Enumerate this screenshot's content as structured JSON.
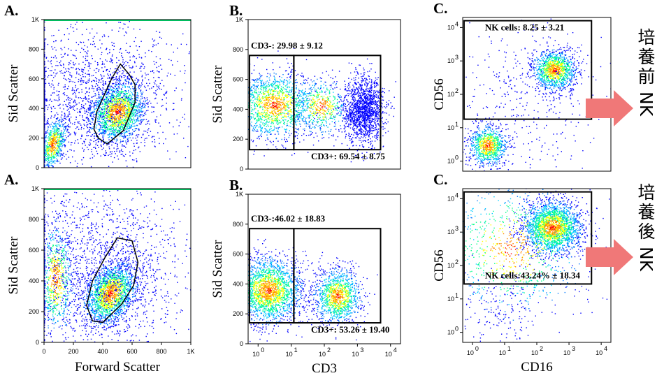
{
  "chart_data": [
    {
      "id": "A-top",
      "type": "scatter",
      "panel_label": "A.",
      "xlabel": "",
      "ylabel": "Sid Scatter",
      "x_ticks": [],
      "y_ticks": [
        "0",
        "200",
        "400",
        "600",
        "800",
        "1K"
      ],
      "xlim": [
        0,
        1000
      ],
      "ylim": [
        0,
        1000
      ],
      "clusters": [
        {
          "x": 500,
          "y": 380,
          "sx": 90,
          "sy": 110,
          "n": 1800,
          "rot": -0.5
        },
        {
          "x": 60,
          "y": 160,
          "sx": 40,
          "sy": 90,
          "n": 700,
          "rot": -0.3
        },
        {
          "x": 330,
          "y": 500,
          "sx": 300,
          "sy": 250,
          "n": 1500,
          "rot": 0
        }
      ],
      "gate": {
        "type": "polygon",
        "points": [
          [
            370,
            200
          ],
          [
            430,
            160
          ],
          [
            540,
            250
          ],
          [
            620,
            440
          ],
          [
            620,
            560
          ],
          [
            580,
            630
          ],
          [
            520,
            700
          ],
          [
            460,
            600
          ],
          [
            360,
            380
          ],
          [
            340,
            260
          ]
        ]
      }
    },
    {
      "id": "B-top",
      "type": "scatter",
      "panel_label": "B.",
      "xlabel": "",
      "ylabel": "Sid Scatter",
      "x_ticks": [],
      "y_ticks": [
        "0",
        "200",
        "400",
        "600",
        "800",
        "1K"
      ],
      "xscale": "log",
      "xlim": [
        0.5,
        20000
      ],
      "ylim": [
        0,
        1000
      ],
      "clusters": [
        {
          "x": 3,
          "y": 430,
          "sx": 0.6,
          "sy": 110,
          "n": 1500,
          "rot": 0
        },
        {
          "x": 80,
          "y": 420,
          "sx": 0.4,
          "sy": 90,
          "n": 500,
          "rot": 0
        },
        {
          "x": 1500,
          "y": 400,
          "sx": 0.3,
          "sy": 110,
          "n": 1500,
          "rot": 0
        }
      ],
      "gates": [
        {
          "label": "CD3-: 29.98 ± 9.12",
          "x": [
            0.55,
            12
          ],
          "y": [
            130,
            760
          ]
        },
        {
          "label": "CD3+: 69.54 ± 8.75",
          "x": [
            12,
            5000
          ],
          "y": [
            130,
            760
          ]
        }
      ]
    },
    {
      "id": "C-top",
      "type": "scatter",
      "panel_label": "C.",
      "xlabel": "",
      "ylabel": "CD56",
      "x_ticks": [],
      "xscale": "log",
      "yscale": "log",
      "xlim": [
        0.5,
        20000
      ],
      "ylim": [
        0.5,
        20000
      ],
      "clusters": [
        {
          "x": 350,
          "y": 550,
          "sx": 0.35,
          "sy": 0.3,
          "n": 1200,
          "rot": 0
        },
        {
          "x": 3,
          "y": 3,
          "sx": 0.3,
          "sy": 0.3,
          "n": 900,
          "rot": 0
        },
        {
          "x": 60,
          "y": 80,
          "sx": 1.2,
          "sy": 1.2,
          "n": 400,
          "rot": 0
        }
      ],
      "gates": [
        {
          "label": "NK cells: 8.25 ± 3.21",
          "x": [
            0.55,
            5000
          ],
          "y": [
            18,
            16000
          ]
        }
      ],
      "side_label": "培養前NK"
    },
    {
      "id": "A-bottom",
      "type": "scatter",
      "panel_label": "A.",
      "xlabel": "Forward Scatter",
      "ylabel": "Sid Scatter",
      "x_ticks": [
        "0",
        "200",
        "400",
        "600",
        "800",
        "1K"
      ],
      "y_ticks": [
        "0",
        "200",
        "400",
        "600",
        "800",
        "1K"
      ],
      "xlim": [
        0,
        1000
      ],
      "ylim": [
        0,
        1000
      ],
      "clusters": [
        {
          "x": 450,
          "y": 320,
          "sx": 80,
          "sy": 110,
          "n": 1900,
          "rot": -0.6
        },
        {
          "x": 80,
          "y": 420,
          "sx": 60,
          "sy": 180,
          "n": 700,
          "rot": 0
        },
        {
          "x": 400,
          "y": 500,
          "sx": 300,
          "sy": 270,
          "n": 1600,
          "rot": 0
        }
      ],
      "gate": {
        "type": "polygon",
        "points": [
          [
            330,
            140
          ],
          [
            400,
            130
          ],
          [
            530,
            250
          ],
          [
            610,
            370
          ],
          [
            640,
            520
          ],
          [
            600,
            660
          ],
          [
            500,
            680
          ],
          [
            420,
            560
          ],
          [
            330,
            400
          ],
          [
            290,
            240
          ]
        ]
      }
    },
    {
      "id": "B-bottom",
      "type": "scatter",
      "panel_label": "B.",
      "xlabel": "CD3",
      "ylabel": "Sid Scatter",
      "x_ticks": [
        "10^0",
        "10^1",
        "10^2",
        "10^3",
        "10^4"
      ],
      "y_ticks": [
        "0",
        "200",
        "400",
        "600",
        "800",
        "1K"
      ],
      "xscale": "log",
      "xlim": [
        0.5,
        20000
      ],
      "ylim": [
        0,
        1000
      ],
      "clusters": [
        {
          "x": 2,
          "y": 360,
          "sx": 0.5,
          "sy": 110,
          "n": 2200,
          "rot": 0
        },
        {
          "x": 250,
          "y": 320,
          "sx": 0.35,
          "sy": 90,
          "n": 1200,
          "rot": 0
        }
      ],
      "gates": [
        {
          "label": "CD3-:46.02 ± 18.83",
          "x": [
            0.55,
            12
          ],
          "y": [
            140,
            770
          ]
        },
        {
          "label": "CD3+: 53.26 ± 19.40",
          "x": [
            12,
            5000
          ],
          "y": [
            140,
            770
          ]
        }
      ]
    },
    {
      "id": "C-bottom",
      "type": "scatter",
      "panel_label": "C.",
      "xlabel": "CD16",
      "ylabel": "CD56",
      "x_ticks": [
        "10^0",
        "10^1",
        "10^2",
        "10^3",
        "10^4"
      ],
      "xscale": "log",
      "yscale": "log",
      "xlim": [
        0.5,
        20000
      ],
      "ylim": [
        0.5,
        20000
      ],
      "clusters": [
        {
          "x": 300,
          "y": 1400,
          "sx": 0.45,
          "sy": 0.4,
          "n": 2200,
          "rot": 0
        },
        {
          "x": 15,
          "y": 300,
          "sx": 1.1,
          "sy": 1.0,
          "n": 900,
          "rot": 0
        },
        {
          "x": 8,
          "y": 5,
          "sx": 0.6,
          "sy": 0.6,
          "n": 150,
          "rot": 0
        }
      ],
      "gates": [
        {
          "label": "NK cells:43.24% ± 18.34",
          "x": [
            0.55,
            5000
          ],
          "y": [
            28,
            16000
          ]
        }
      ],
      "side_label": "培養後NK"
    }
  ],
  "arrow_color": "#f07878",
  "density_colors": [
    "#0000ff",
    "#0077ff",
    "#00ccff",
    "#00ff88",
    "#ffff00",
    "#ff8800",
    "#ff0000"
  ]
}
